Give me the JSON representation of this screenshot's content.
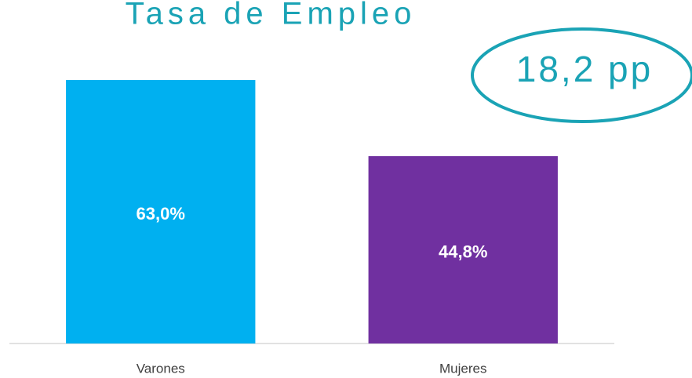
{
  "chart_data": {
    "type": "bar",
    "title": "Tasa de Empleo",
    "categories": [
      "Varones",
      "Mujeres"
    ],
    "values": [
      63.0,
      44.8
    ],
    "value_labels": [
      "63,0%",
      "44,8%"
    ],
    "colors": [
      "#00b0f0",
      "#7030a0"
    ],
    "ylim": [
      0,
      70
    ],
    "annotation": "18,2 pp"
  }
}
